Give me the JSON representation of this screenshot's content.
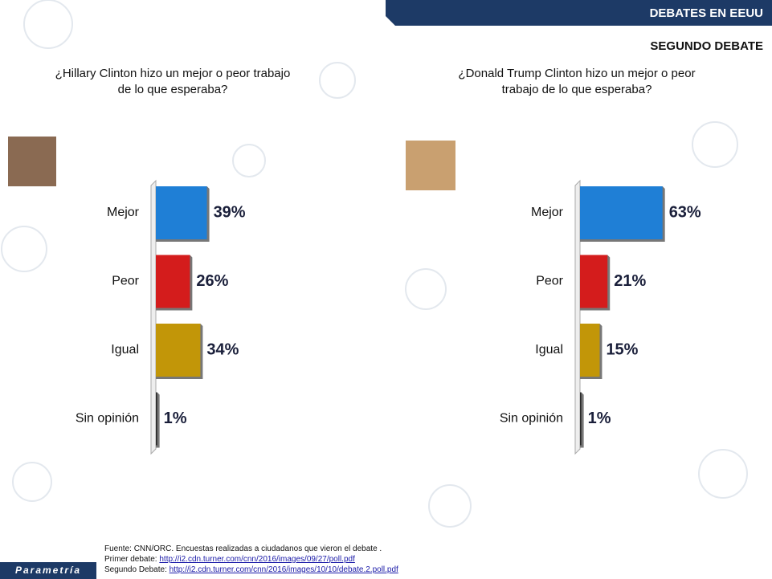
{
  "header": {
    "banner": "DEBATES EN EEUU",
    "subtitle": "SEGUNDO DEBATE"
  },
  "logo": "Parametría",
  "chart_data": [
    {
      "type": "bar",
      "orientation": "horizontal",
      "title": "¿Hillary Clinton hizo un mejor o peor trabajo de lo que esperaba?",
      "categories": [
        "Mejor",
        "Peor",
        "Igual",
        "Sin opinión"
      ],
      "values": [
        39,
        26,
        34,
        1
      ],
      "value_labels": [
        "39%",
        "26%",
        "34%",
        "1%"
      ],
      "colors": [
        "#1f7fd6",
        "#d41c1c",
        "#c29608",
        "#2a2a2a"
      ]
    },
    {
      "type": "bar",
      "orientation": "horizontal",
      "title": "¿Donald Trump Clinton hizo un mejor o peor trabajo de lo que esperaba?",
      "categories": [
        "Mejor",
        "Peor",
        "Igual",
        "Sin opinión"
      ],
      "values": [
        63,
        21,
        15,
        1
      ],
      "value_labels": [
        "63%",
        "21%",
        "15%",
        "1%"
      ],
      "colors": [
        "#1f7fd6",
        "#d41c1c",
        "#c29608",
        "#2a2a2a"
      ]
    }
  ],
  "footer": {
    "source": "Fuente: CNN/ORC. Encuestas realizadas a ciudadanos que vieron el debate .",
    "links": [
      {
        "label": "Primer debate:",
        "url": "http://i2.cdn.turner.com/cnn/2016/images/09/27/poll.pdf"
      },
      {
        "label": "Segundo Debate:",
        "url": "http://i2.cdn.turner.com/cnn/2016/images/10/10/debate.2.poll.pdf"
      }
    ]
  }
}
